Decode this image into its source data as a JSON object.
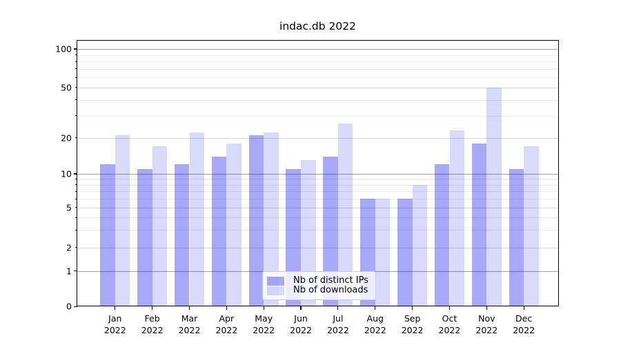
{
  "title": "indac.db 2022",
  "legend": {
    "items": [
      {
        "label": "Nb of distinct IPs",
        "color": "rgba(0,0,235,0.34)"
      },
      {
        "label": "Nb of downloads",
        "color": "rgba(0,0,235,0.15)"
      }
    ]
  },
  "colors": {
    "bar_distinct_ips": "rgba(0,0,235,0.34)",
    "bar_downloads": "rgba(0,0,235,0.15)",
    "grid_major": "#a0a0a0",
    "grid_labeled_minor": "#d9d9d9",
    "grid_minor": "#ebebeb",
    "spine": "#000000"
  },
  "chart_data": {
    "type": "bar",
    "title": "indac.db 2022",
    "categories": [
      {
        "month": "Jan",
        "year": "2022"
      },
      {
        "month": "Feb",
        "year": "2022"
      },
      {
        "month": "Mar",
        "year": "2022"
      },
      {
        "month": "Apr",
        "year": "2022"
      },
      {
        "month": "May",
        "year": "2022"
      },
      {
        "month": "Jun",
        "year": "2022"
      },
      {
        "month": "Jul",
        "year": "2022"
      },
      {
        "month": "Aug",
        "year": "2022"
      },
      {
        "month": "Sep",
        "year": "2022"
      },
      {
        "month": "Oct",
        "year": "2022"
      },
      {
        "month": "Nov",
        "year": "2022"
      },
      {
        "month": "Dec",
        "year": "2022"
      }
    ],
    "series": [
      {
        "name": "Nb of distinct IPs",
        "values": [
          12,
          11,
          12,
          14,
          21,
          11,
          14,
          6,
          6,
          12,
          18,
          11
        ]
      },
      {
        "name": "Nb of downloads",
        "values": [
          21,
          17,
          22,
          18,
          22,
          13,
          26,
          6,
          8,
          23,
          50,
          17
        ]
      }
    ],
    "xlabel": "",
    "ylabel": "",
    "yscale": "symlog (linear 0-1, log above 1)",
    "yticks_major": [
      0,
      1,
      10,
      100
    ],
    "yticks_labeled_minor": [
      2,
      5,
      20,
      50
    ],
    "ytick_labels": [
      "0",
      "1",
      "2",
      "5",
      "10",
      "20",
      "50",
      "100"
    ],
    "yticks_minor": [
      3,
      4,
      6,
      7,
      8,
      9,
      30,
      40,
      60,
      70,
      80,
      90
    ],
    "ylim": [
      0,
      115
    ],
    "grid": true,
    "legend_position": "lower center"
  }
}
